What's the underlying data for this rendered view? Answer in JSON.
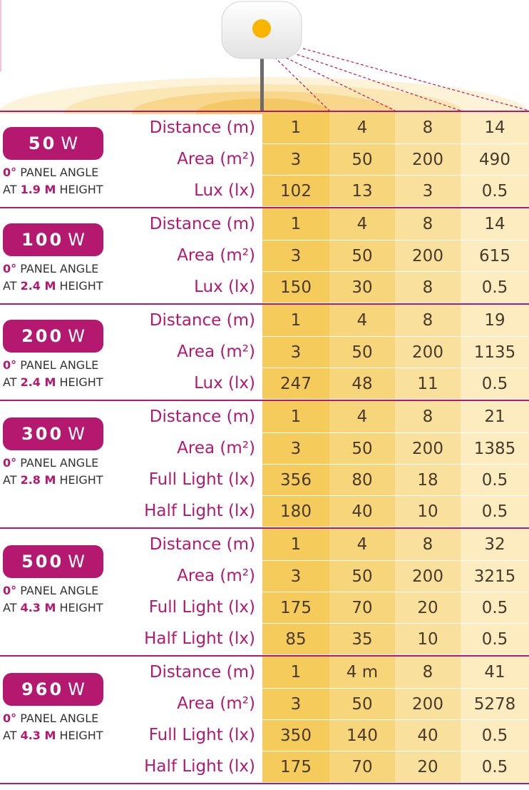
{
  "groups": [
    {
      "power": "50",
      "unit": "W",
      "angle_value": "0°",
      "angle_text": "PANEL ANGLE",
      "at_text": "AT",
      "height_value": "1.9 M",
      "height_text": "HEIGHT",
      "rows": [
        {
          "label": "Distance (m)",
          "values": [
            "1",
            "4",
            "8",
            "14"
          ]
        },
        {
          "label": "Area (m²)",
          "values": [
            "3",
            "50",
            "200",
            "490"
          ]
        },
        {
          "label": "Lux (lx)",
          "values": [
            "102",
            "13",
            "3",
            "0.5"
          ]
        }
      ]
    },
    {
      "power": "100",
      "unit": "W",
      "angle_value": "0°",
      "angle_text": "PANEL ANGLE",
      "at_text": "AT",
      "height_value": "2.4 M",
      "height_text": "HEIGHT",
      "rows": [
        {
          "label": "Distance (m)",
          "values": [
            "1",
            "4",
            "8",
            "14"
          ]
        },
        {
          "label": "Area (m²)",
          "values": [
            "3",
            "50",
            "200",
            "615"
          ]
        },
        {
          "label": "Lux (lx)",
          "values": [
            "150",
            "30",
            "8",
            "0.5"
          ]
        }
      ]
    },
    {
      "power": "200",
      "unit": "W",
      "angle_value": "0°",
      "angle_text": "PANEL ANGLE",
      "at_text": "AT",
      "height_value": "2.4 M",
      "height_text": "HEIGHT",
      "rows": [
        {
          "label": "Distance (m)",
          "values": [
            "1",
            "4",
            "8",
            "19"
          ]
        },
        {
          "label": "Area (m²)",
          "values": [
            "3",
            "50",
            "200",
            "1135"
          ]
        },
        {
          "label": "Lux (lx)",
          "values": [
            "247",
            "48",
            "11",
            "0.5"
          ]
        }
      ]
    },
    {
      "power": "300",
      "unit": "W",
      "angle_value": "0°",
      "angle_text": "PANEL ANGLE",
      "at_text": "AT",
      "height_value": "2.8 M",
      "height_text": "HEIGHT",
      "rows": [
        {
          "label": "Distance (m)",
          "values": [
            "1",
            "4",
            "8",
            "21"
          ]
        },
        {
          "label": "Area (m²)",
          "values": [
            "3",
            "50",
            "200",
            "1385"
          ]
        },
        {
          "label": "Full Light (lx)",
          "values": [
            "356",
            "80",
            "18",
            "0.5"
          ]
        },
        {
          "label": "Half Light (lx)",
          "values": [
            "180",
            "40",
            "10",
            "0.5"
          ]
        }
      ]
    },
    {
      "power": "500",
      "unit": "W",
      "angle_value": "0°",
      "angle_text": "PANEL ANGLE",
      "at_text": "AT",
      "height_value": "4.3 M",
      "height_text": "HEIGHT",
      "rows": [
        {
          "label": "Distance (m)",
          "values": [
            "1",
            "4",
            "8",
            "32"
          ]
        },
        {
          "label": "Area (m²)",
          "values": [
            "3",
            "50",
            "200",
            "3215"
          ]
        },
        {
          "label": "Full Light (lx)",
          "values": [
            "175",
            "70",
            "20",
            "0.5"
          ]
        },
        {
          "label": "Half Light (lx)",
          "values": [
            "85",
            "35",
            "10",
            "0.5"
          ]
        }
      ]
    },
    {
      "power": "960",
      "unit": "W",
      "angle_value": "0°",
      "angle_text": "PANEL ANGLE",
      "at_text": "AT",
      "height_value": "4.3 M",
      "height_text": "HEIGHT",
      "rows": [
        {
          "label": "Distance (m)",
          "values": [
            "1",
            "4 m",
            "8",
            "41"
          ]
        },
        {
          "label": "Area (m²)",
          "values": [
            "3",
            "50",
            "200",
            "5278"
          ]
        },
        {
          "label": "Full Light (lx)",
          "values": [
            "350",
            "140",
            "40",
            "0.5"
          ]
        },
        {
          "label": "Half Light (lx)",
          "values": [
            "175",
            "70",
            "20",
            "0.5"
          ]
        }
      ]
    }
  ],
  "colors": {
    "accent": "#b5186f",
    "light_dot": "#f7b500",
    "column_shades": [
      "#f5cb5c",
      "#f7d57a",
      "#f9e19d",
      "#fcecc0"
    ]
  }
}
